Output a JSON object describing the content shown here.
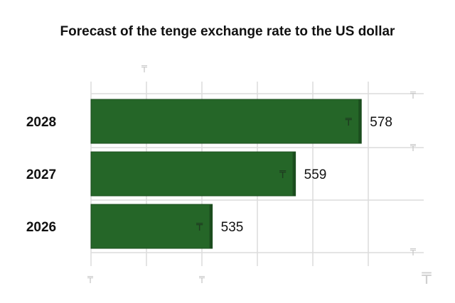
{
  "chart_data": {
    "type": "bar",
    "orientation": "horizontal",
    "title": "Forecast of the tenge exchange rate to the US dollar",
    "categories": [
      "2028",
      "2027",
      "2026"
    ],
    "values": [
      578,
      559,
      535
    ],
    "value_labels": [
      "578",
      "559",
      "535"
    ],
    "currency_symbol": "₸",
    "xlim": [
      500,
      580
    ],
    "grid": true,
    "legend": "none",
    "colors": {
      "bar": "#256628",
      "bar_edge": "#1b4d1e",
      "grid": "#dcdcdc"
    }
  }
}
